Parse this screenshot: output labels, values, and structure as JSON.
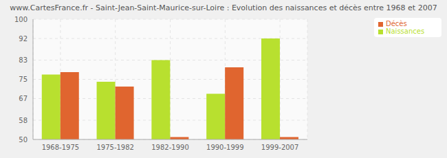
{
  "chart_data": {
    "type": "bar",
    "title": "www.CartesFrance.fr - Saint-Jean-Saint-Maurice-sur-Loire : Evolution des naissances et décès entre 1968 et 2007",
    "categories": [
      "1968-1975",
      "1975-1982",
      "1982-1990",
      "1990-1999",
      "1999-2007"
    ],
    "series": [
      {
        "name": "Naissances",
        "color": "#b8e02f",
        "values": [
          77,
          74,
          83,
          69,
          92
        ]
      },
      {
        "name": "Décès",
        "color": "#e0652f",
        "values": [
          78,
          72,
          51,
          80,
          51
        ]
      }
    ],
    "ylim": [
      50,
      100
    ],
    "yticks": [
      50,
      58,
      67,
      75,
      83,
      92,
      100
    ],
    "grid": true,
    "legend": "top-right"
  }
}
